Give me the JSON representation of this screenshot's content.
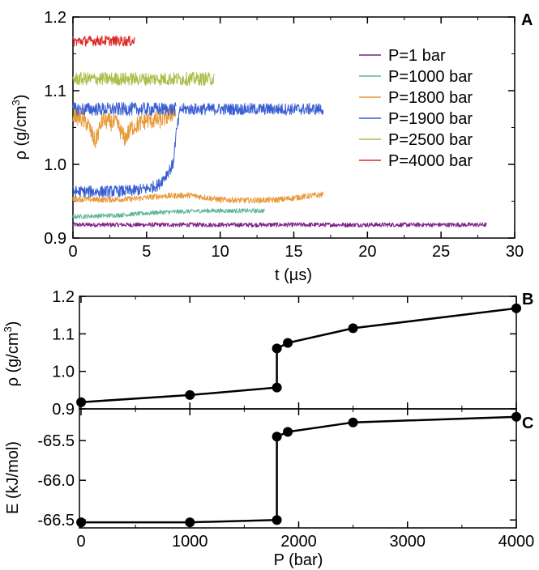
{
  "chart_data": [
    {
      "panel": "A",
      "type": "line",
      "xlabel": "t (µs)",
      "ylabel": "ρ (g/cm³)",
      "xlim": [
        0,
        30
      ],
      "ylim": [
        0.9,
        1.2
      ],
      "x_ticks": [
        "0",
        "5",
        "10",
        "15",
        "20",
        "25",
        "30"
      ],
      "y_ticks": [
        "0.9",
        "1.0",
        "1.1",
        "1.2"
      ],
      "legend_position": "right",
      "series": [
        {
          "name": "P=1 bar",
          "color": "#7f1f8c",
          "x": [
            0,
            4,
            8,
            12,
            16,
            20,
            24,
            28.1
          ],
          "y": [
            0.918,
            0.918,
            0.918,
            0.918,
            0.918,
            0.918,
            0.918,
            0.918
          ],
          "noise": 0.003
        },
        {
          "name": "P=1000 bar",
          "color": "#5fb79a",
          "x": [
            0,
            3,
            6,
            9,
            13.0
          ],
          "y": [
            0.929,
            0.931,
            0.935,
            0.937,
            0.937
          ],
          "noise": 0.003
        },
        {
          "name": "P=1800 bar",
          "color": "#e89a3a",
          "x": [
            0,
            2,
            4,
            6,
            8,
            10,
            12,
            14,
            16,
            17.0
          ],
          "y": [
            0.953,
            0.952,
            0.953,
            0.957,
            0.958,
            0.952,
            0.951,
            0.952,
            0.957,
            0.959
          ],
          "noise": 0.004
        },
        {
          "name": "P=1800 bar (upper)",
          "color": "#e89a3a",
          "x": [
            0,
            1,
            1.5,
            2,
            3,
            3.5,
            4,
            5,
            6,
            6.8,
            7.0
          ],
          "y": [
            1.07,
            1.055,
            1.03,
            1.06,
            1.055,
            1.035,
            1.05,
            1.06,
            1.06,
            1.07,
            1.07
          ],
          "noise": 0.012
        },
        {
          "name": "P=1900 bar",
          "color": "#3a5fd4",
          "x": [
            0,
            2,
            4,
            5,
            5.8,
            6.3,
            6.8,
            7.0,
            7.3,
            9,
            11,
            13,
            15,
            17.0
          ],
          "y": [
            0.963,
            0.963,
            0.964,
            0.967,
            0.972,
            0.985,
            1.0,
            1.04,
            1.075,
            1.075,
            1.075,
            1.075,
            1.075,
            1.075
          ],
          "noise": 0.008
        },
        {
          "name": "P=1900 bar (upper)",
          "color": "#3a5fd4",
          "x": [
            0,
            2,
            4,
            6,
            7.0
          ],
          "y": [
            1.075,
            1.075,
            1.075,
            1.075,
            1.075
          ],
          "noise": 0.009
        },
        {
          "name": "P=2500 bar",
          "color": "#a8c04a",
          "x": [
            0,
            2,
            4,
            6,
            8,
            9.6
          ],
          "y": [
            1.116,
            1.116,
            1.116,
            1.116,
            1.116,
            1.116
          ],
          "noise": 0.009
        },
        {
          "name": "P=4000 bar",
          "color": "#dd2a25",
          "x": [
            0,
            2,
            4.2
          ],
          "y": [
            1.167,
            1.168,
            1.167
          ],
          "noise": 0.007
        }
      ]
    },
    {
      "panel": "B",
      "type": "line",
      "xlabel": "",
      "ylabel": "ρ (g/cm³)",
      "xlim": [
        0,
        4000
      ],
      "ylim": [
        0.9,
        1.2
      ],
      "y_ticks": [
        "0.9",
        "1.0",
        "1.1",
        "1.2"
      ],
      "series": [
        {
          "name": "",
          "color": "#000000",
          "x": [
            1,
            1000,
            1800,
            1800,
            1900,
            2500,
            4000
          ],
          "y": [
            0.918,
            0.937,
            0.957,
            1.061,
            1.076,
            1.115,
            1.168
          ]
        }
      ]
    },
    {
      "panel": "C",
      "type": "line",
      "xlabel": "P (bar)",
      "ylabel": "E (kJ/mol)",
      "xlim": [
        0,
        4000
      ],
      "ylim": [
        -66.6,
        -65.1
      ],
      "x_ticks": [
        "0",
        "1000",
        "2000",
        "3000",
        "4000"
      ],
      "y_ticks": [
        "-66.5",
        "-66.0",
        "-65.5"
      ],
      "series": [
        {
          "name": "",
          "color": "#000000",
          "x": [
            1,
            1000,
            1800,
            1800,
            1900,
            2500,
            4000
          ],
          "y": [
            -66.53,
            -66.53,
            -66.5,
            -65.45,
            -65.39,
            -65.27,
            -65.2
          ]
        }
      ]
    }
  ],
  "labels": {
    "panel_a": "A",
    "panel_b": "B",
    "panel_c": "C",
    "a_xlabel": "t (µs)",
    "a_ylabel_main": "ρ (g/cm",
    "a_ylabel_sup": "3",
    "a_ylabel_end": ")",
    "b_ylabel_main": "ρ (g/cm",
    "b_ylabel_sup": "3",
    "b_ylabel_end": ")",
    "c_ylabel": "E (kJ/mol)",
    "c_xlabel": "P (bar)"
  }
}
